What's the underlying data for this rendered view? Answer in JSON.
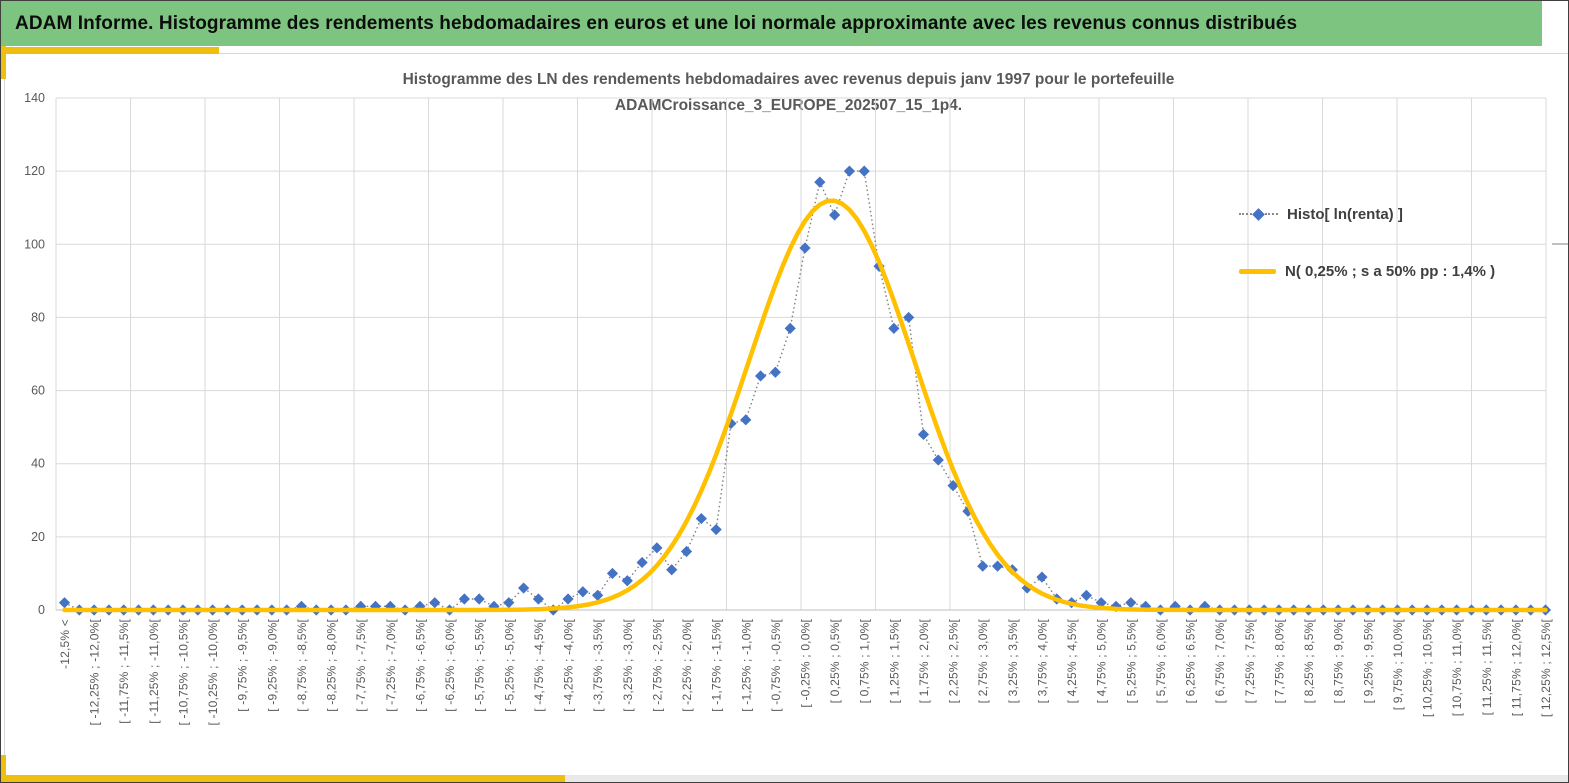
{
  "window": {
    "header_title": "ADAM Informe. Histogramme des rendements hebdomadaires en euros et une loi normale approximante avec les revenus connus distribués"
  },
  "colors": {
    "header_green": "#7cc47f",
    "accent_gold": "#efbf10",
    "curve_yellow": "#ffc000",
    "point_blue": "#4472c4",
    "dotted_line_gray": "#808080",
    "gridline_gray": "#d9d9d9",
    "axis_gray": "#bfbfbf",
    "label_gray": "#595959"
  },
  "chart_data": {
    "type": "line",
    "title_line1": "Histogramme des LN des rendements hebdomadaires avec revenus depuis janv 1997 pour le portefeuille",
    "title_line2": "ADAMCroissance_3_EUROPE_202507_15_1p4.",
    "ylim": [
      0,
      140
    ],
    "y_ticks": [
      0,
      20,
      40,
      60,
      80,
      100,
      120,
      140
    ],
    "grid": true,
    "legend_position": "right",
    "x_tick_labels": [
      "-12,5% <",
      "[ -12,25% ; -12,0%[",
      "[ -11,75% ; -11,5%[",
      "[ -11,25% ; -11,0%[",
      "[ -10,75% ; -10,5%[",
      "[ -10,25% ; -10,0%[",
      "[ -9,75% ; -9,5%[",
      "[ -9,25% ; -9,0%[",
      "[ -8,75% ; -8,5%[",
      "[ -8,25% ; -8,0%[",
      "[ -7,75% ; -7,5%[",
      "[ -7,25% ; -7,0%[",
      "[ -6,75% ; -6,5%[",
      "[ -6,25% ; -6,0%[",
      "[ -5,75% ; -5,5%[",
      "[ -5,25% ; -5,0%[",
      "[ -4,75% ; -4,5%[",
      "[ -4,25% ; -4,0%[",
      "[ -3,75% ; -3,5%[",
      "[ -3,25% ; -3,0%[",
      "[ -2,75% ; -2,5%[",
      "[ -2,25% ; -2,0%[",
      "[ -1,75% ; -1,5%[",
      "[ -1,25% ; -1,0%[",
      "[ -0,75% ; -0,5%[",
      "[ -0,25% ; 0,0%[",
      "[ 0,25% ; 0,5%[",
      "[ 0,75% ; 1,0%[",
      "[ 1,25% ; 1,5%[",
      "[ 1,75% ; 2,0%[",
      "[ 2,25% ; 2,5%[",
      "[ 2,75% ; 3,0%[",
      "[ 3,25% ; 3,5%[",
      "[ 3,75% ; 4,0%[",
      "[ 4,25% ; 4,5%[",
      "[ 4,75% ; 5,0%[",
      "[ 5,25% ; 5,5%[",
      "[ 5,75% ; 6,0%[",
      "[ 6,25% ; 6,5%[",
      "[ 6,75% ; 7,0%[",
      "[ 7,25% ; 7,5%[",
      "[ 7,75% ; 8,0%[",
      "[ 8,25% ; 8,5%[",
      "[ 8,75% ; 9,0%[",
      "[ 9,25% ; 9,5%[",
      "[ 9,75% ; 10,0%[",
      "[ 10,25% ; 10,5%[",
      "[ 10,75% ; 11,0%[",
      "[ 11,25% ; 11,5%[",
      "[ 11,75% ; 12,0%[",
      "[ 12,25% ; 12,5%["
    ],
    "series": [
      {
        "name": "Histo[ ln(renta) ]",
        "type": "scatter-dotted",
        "marker": "diamond",
        "values": [
          2,
          0,
          0,
          0,
          0,
          0,
          0,
          0,
          0,
          0,
          0,
          0,
          0,
          0,
          0,
          0,
          1,
          0,
          0,
          0,
          1,
          1,
          1,
          0,
          1,
          2,
          0,
          3,
          3,
          1,
          2,
          6,
          3,
          0,
          3,
          5,
          4,
          10,
          8,
          13,
          17,
          11,
          16,
          25,
          22,
          51,
          52,
          64,
          65,
          77,
          99,
          117,
          108,
          120,
          120,
          94,
          77,
          80,
          48,
          41,
          34,
          27,
          12,
          12,
          11,
          6,
          9,
          3,
          2,
          4,
          2,
          1,
          2,
          1,
          0,
          1,
          0,
          1,
          0,
          0,
          0,
          0,
          0,
          0,
          0,
          0,
          0,
          0,
          0,
          0,
          0,
          0,
          0,
          0,
          0,
          0,
          0,
          0,
          0,
          0,
          0
        ]
      },
      {
        "name": "N( 0,25% ; s a 50% pp : 1,4% )",
        "type": "gaussian-curve",
        "amplitude": 112,
        "center_bin": 51.8,
        "sigma_bins": 5.6
      }
    ]
  }
}
